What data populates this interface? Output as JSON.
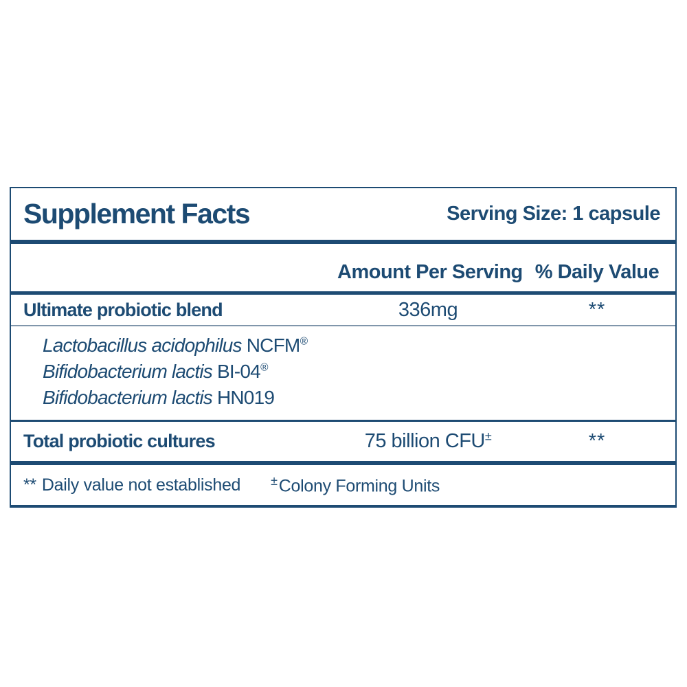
{
  "label": {
    "title": "Supplement Facts",
    "serving_size": "Serving Size: 1 capsule",
    "columns": {
      "amount": "Amount Per Serving",
      "daily_value": "% Daily Value"
    },
    "rows": [
      {
        "name": "Ultimate probiotic blend",
        "amount": "336mg",
        "daily_value": "**"
      },
      {
        "name": "Total probiotic cultures",
        "amount": "75 billion CFU",
        "amount_sup": "±",
        "daily_value": "**"
      }
    ],
    "ingredients": [
      {
        "species": "Lactobacillus acidophilus",
        "strain": "NCFM",
        "sup": "®"
      },
      {
        "species": "Bifidobacterium lactis",
        "strain": "BI-04",
        "sup": "®"
      },
      {
        "species": "Bifidobacterium lactis",
        "strain": "HN019",
        "sup": ""
      }
    ],
    "footnotes": {
      "daily_value": {
        "symbol": "**",
        "text": "Daily value not established"
      },
      "cfu": {
        "symbol": "±",
        "text": "Colony Forming Units"
      }
    },
    "colors": {
      "ink": "#1d4b73",
      "light_rule": "#8096ab",
      "background": "#ffffff"
    }
  }
}
